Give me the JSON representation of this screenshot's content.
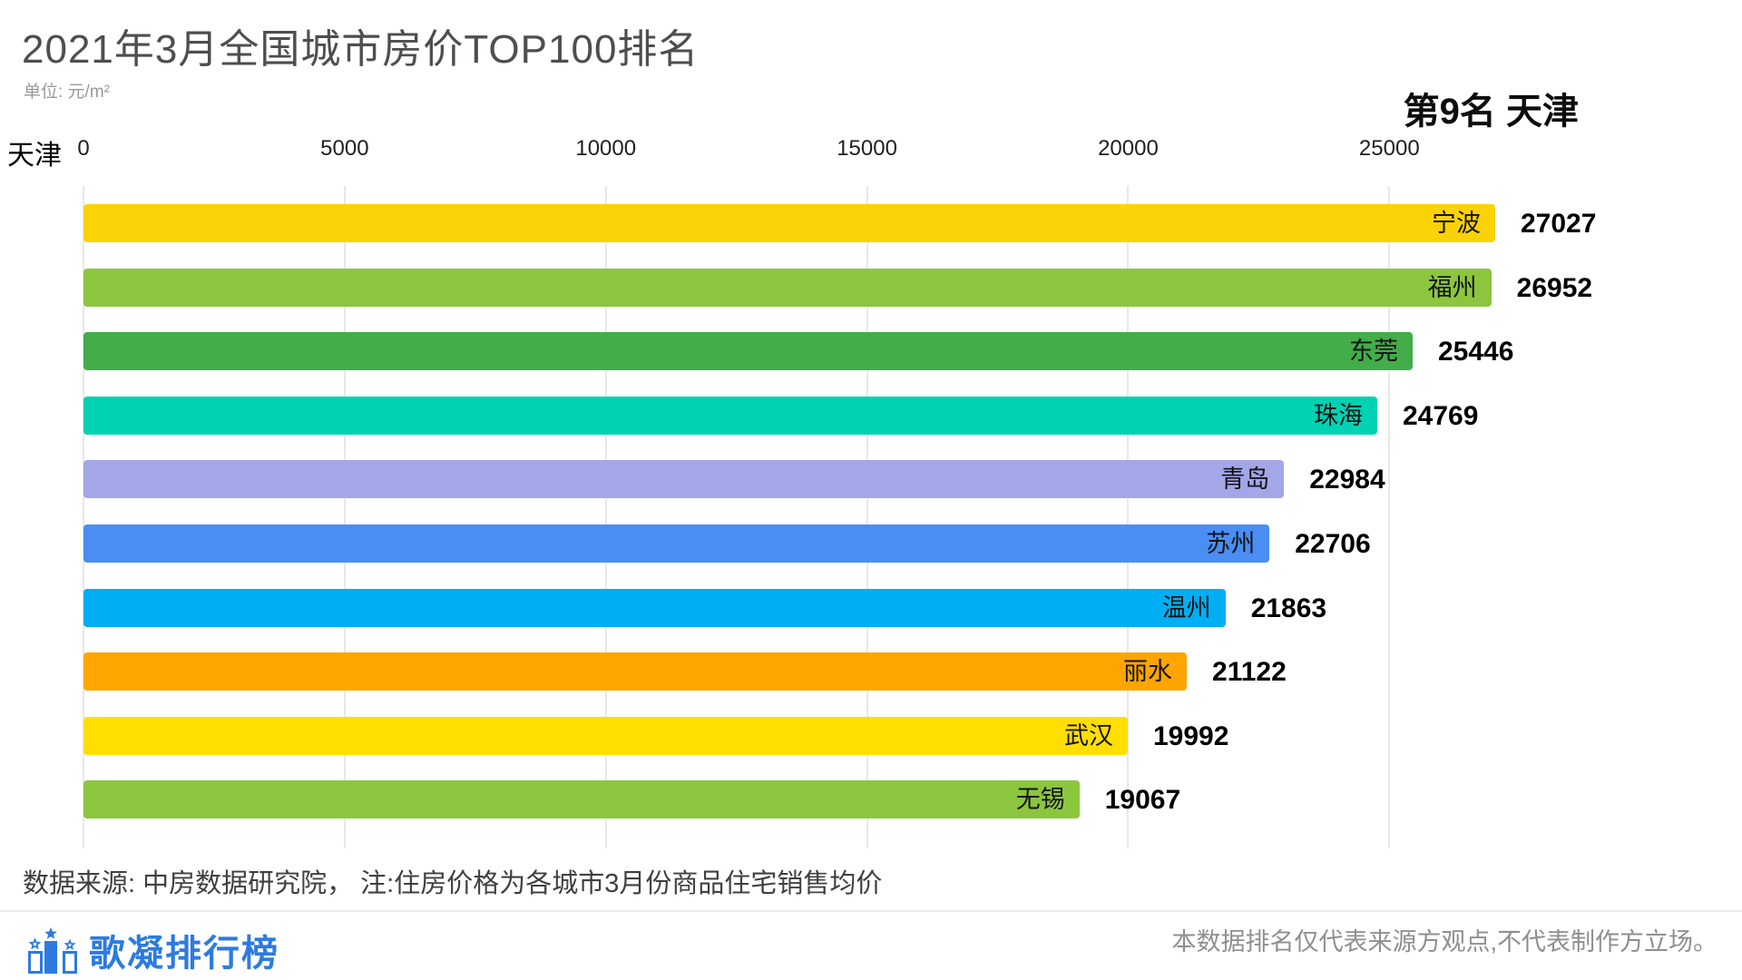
{
  "header": {
    "title": "2021年3月全国城市房价TOP100排名",
    "unit_label": "单位: 元/m²",
    "current_rank": "第9名 天津",
    "axis_left_city": "天津"
  },
  "chart_data": {
    "type": "bar",
    "orientation": "horizontal",
    "title": "2021年3月全国城市房价TOP100排名",
    "unit": "元/m²",
    "categories": [
      "宁波",
      "福州",
      "东莞",
      "珠海",
      "青岛",
      "苏州",
      "温州",
      "丽水",
      "武汉",
      "无锡"
    ],
    "values": [
      27027,
      26952,
      25446,
      24769,
      22984,
      22706,
      21863,
      21122,
      19992,
      19067
    ],
    "bar_colors": [
      "#fbd205",
      "#8cc63f",
      "#42ad49",
      "#00d2b3",
      "#a3a6e7",
      "#4a8df3",
      "#00aef3",
      "#ffa502",
      "#ffdf00",
      "#8cc63f"
    ],
    "x_ticks": [
      0,
      5000,
      10000,
      15000,
      20000,
      25000
    ],
    "xlim": [
      0,
      27027
    ],
    "grid": true,
    "legend": "none",
    "xlabel": "",
    "ylabel": ""
  },
  "footer": {
    "source_note": "数据来源: 中房数据研究院， 注:住房价格为各城市3月份商品住宅销售均价",
    "brand_name": "歌凝排行榜",
    "brand_color": "#2c7be0",
    "disclaimer": "本数据排名仅代表来源方观点,不代表制作方立场。"
  }
}
